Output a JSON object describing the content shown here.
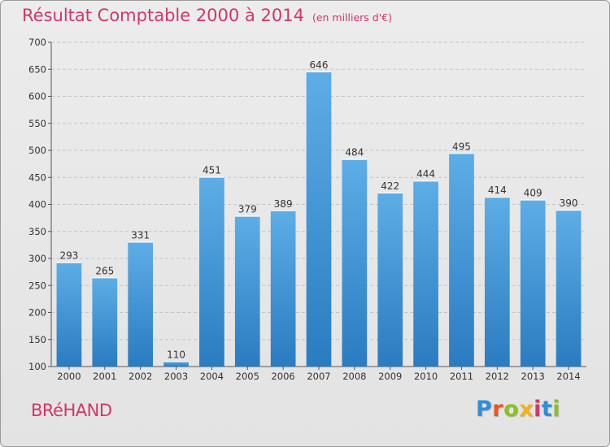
{
  "header": {
    "title": "Résultat Comptable 2000 à 2014",
    "subtitle": "(en milliers d'€)"
  },
  "commune": "BRéHAND",
  "brand": {
    "letters": [
      "P",
      "r",
      "o",
      "x",
      "i",
      "t",
      "i"
    ],
    "colors": [
      "#2f8fd6",
      "#e8552a",
      "#8cbf26",
      "#f2b31b",
      "#d1376a",
      "#2f8fd6",
      "#8cbf26"
    ]
  },
  "chart_data": {
    "type": "bar",
    "title": "Résultat Comptable 2000 à 2014",
    "xlabel": "",
    "ylabel": "",
    "categories": [
      "2000",
      "2001",
      "2002",
      "2003",
      "2004",
      "2005",
      "2006",
      "2007",
      "2008",
      "2009",
      "2010",
      "2011",
      "2012",
      "2013",
      "2014"
    ],
    "values": [
      293,
      265,
      331,
      110,
      451,
      379,
      389,
      646,
      484,
      422,
      444,
      495,
      414,
      409,
      390
    ],
    "ylim": [
      100,
      700
    ],
    "yticks": [
      100,
      150,
      200,
      250,
      300,
      350,
      400,
      450,
      500,
      550,
      600,
      650,
      700
    ],
    "grid": true,
    "bar_color_top": "#5dade6",
    "bar_color_bottom": "#2a7cc1"
  }
}
